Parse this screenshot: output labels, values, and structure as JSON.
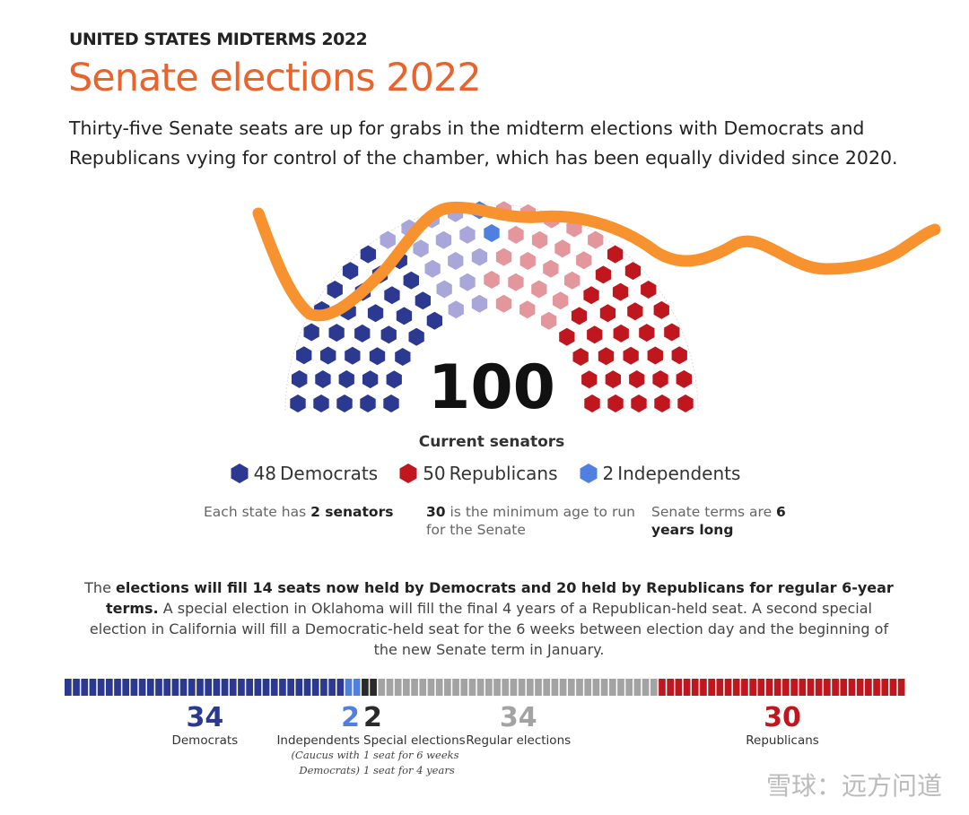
{
  "header": {
    "kicker": "UNITED STATES MIDTERMS 2022",
    "title": "Senate elections 2022",
    "intro": "Thirty-five Senate seats are up for grabs in the midterm elections with Democrats and Republicans vying for control of the chamber, which has been equally divided since 2020."
  },
  "chart_data": [
    {
      "type": "parliament",
      "total": 100,
      "total_label": "Current senators",
      "legend": [
        {
          "value": 48,
          "name": "Democrats",
          "color": "#2b3990"
        },
        {
          "value": 50,
          "name": "Republicans",
          "color": "#c0161e"
        },
        {
          "value": 2,
          "name": "Independents",
          "color": "#4f7fe0"
        }
      ],
      "seat_groups": [
        {
          "value": 34,
          "color": "#2b3990"
        },
        {
          "value": 14,
          "color": "#a9a7d9"
        },
        {
          "value": 2,
          "color": "#4f7fe0"
        },
        {
          "value": 20,
          "color": "#e3969b"
        },
        {
          "value": 30,
          "color": "#c0161e"
        }
      ]
    },
    {
      "type": "stacked-bar",
      "series": [
        {
          "name": "Democrats",
          "value": 34,
          "color": "#2b3990"
        },
        {
          "name": "Independents",
          "value": 2,
          "color": "#4f7fe0",
          "notes": [
            "(Caucus with",
            "Democrats)"
          ]
        },
        {
          "name": "Special elections",
          "value": 2,
          "color": "#2a2a2a",
          "notes": [
            "1 seat for 6 weeks",
            "1 seat for 4 years"
          ]
        },
        {
          "name": "Regular elections",
          "value": 34,
          "color": "#a3a3a3"
        },
        {
          "name": "Republicans",
          "value": 30,
          "color": "#c0161e"
        }
      ]
    }
  ],
  "facts": [
    [
      {
        "text": "Each state has "
      },
      {
        "text": "2 senators",
        "bold": true
      }
    ],
    [
      {
        "text": "30",
        "bold": true
      },
      {
        "text": " is the minimum age to run for the Senate"
      }
    ],
    [
      {
        "text": "Senate terms are "
      },
      {
        "text": "6 years long",
        "bold": true
      }
    ]
  ],
  "body": [
    {
      "text": "The "
    },
    {
      "text": "elections will fill 14 seats now held by Democrats and 20 held by Republicans for regular 6-year terms.",
      "bold": true
    },
    {
      "text": " A special election in Oklahoma will fill the final 4 years of a Republican-held seat. A second special election in California will fill a Democratic-held seat for the 6 weeks between election day and the beginning of the new Senate term in January."
    }
  ],
  "watermark": "雪球：远方问道"
}
